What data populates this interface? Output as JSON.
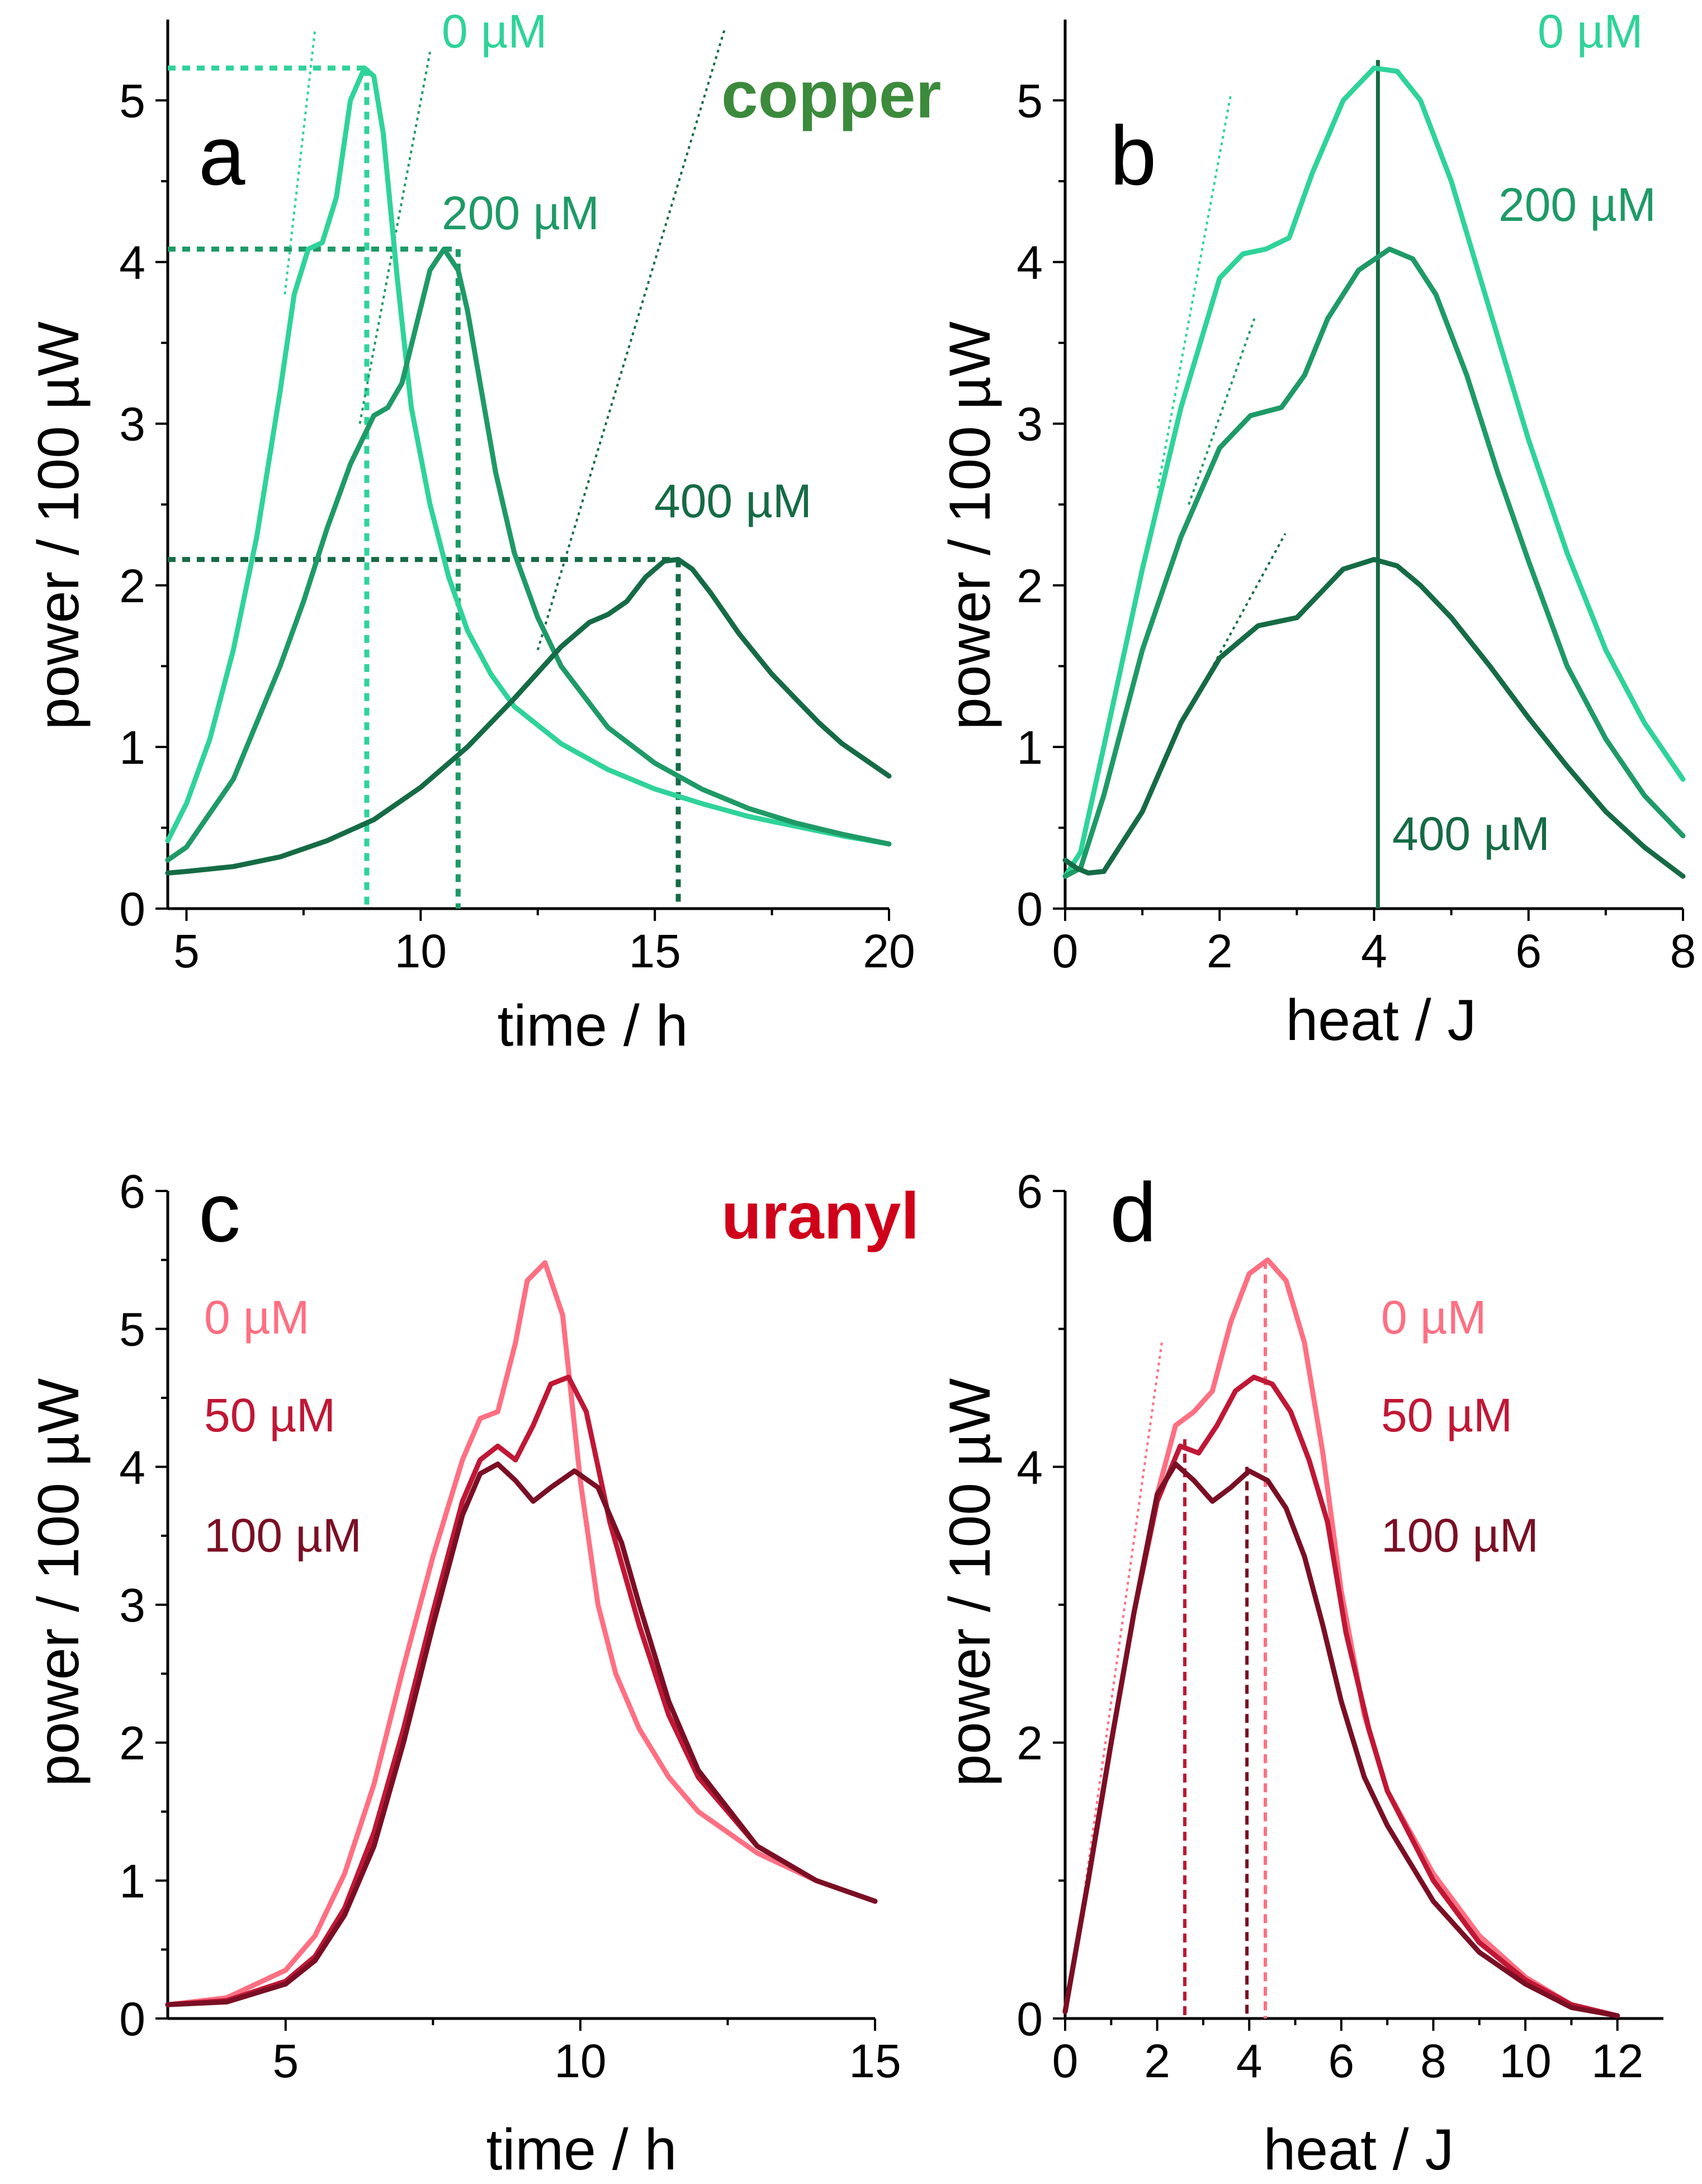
{
  "labels": {
    "copper": "copper",
    "uranyl": "uranyl"
  },
  "colors": {
    "cu_0": "#2fd39a",
    "cu_200": "#1e9a66",
    "cu_400": "#156b45",
    "cu_label": "#3c8a3c",
    "u_0": "#ff6f82",
    "u_50": "#c01735",
    "u_100": "#7a0f24",
    "u_label": "#d0001a"
  },
  "chart_data": [
    {
      "panel": "a",
      "type": "line",
      "xlabel": "time / h",
      "ylabel": "power / 100 µW",
      "xlim": [
        4.6,
        20
      ],
      "ylim": [
        0,
        5.5
      ],
      "xticks": [
        5,
        10,
        15,
        20
      ],
      "yticks": [
        0,
        1,
        2,
        3,
        4,
        5
      ],
      "series": [
        {
          "name": "0 µM",
          "color_key": "cu_0",
          "x": [
            4.6,
            5.0,
            5.5,
            6.0,
            6.5,
            7.0,
            7.3,
            7.6,
            7.9,
            8.2,
            8.5,
            8.8,
            9.0,
            9.2,
            9.5,
            9.8,
            10.2,
            10.6,
            11.0,
            11.5,
            12.0,
            13.0,
            14.0,
            15.0,
            16.0,
            17.0,
            18.0,
            19.0,
            20.0
          ],
          "y": [
            0.42,
            0.65,
            1.05,
            1.6,
            2.3,
            3.2,
            3.8,
            4.08,
            4.12,
            4.4,
            5.0,
            5.2,
            5.15,
            4.8,
            3.9,
            3.1,
            2.5,
            2.05,
            1.72,
            1.45,
            1.25,
            1.02,
            0.86,
            0.74,
            0.65,
            0.57,
            0.51,
            0.45,
            0.4
          ]
        },
        {
          "name": "200 µM",
          "color_key": "cu_200",
          "x": [
            4.6,
            5.0,
            6.0,
            7.0,
            7.5,
            8.0,
            8.5,
            9.0,
            9.3,
            9.6,
            9.9,
            10.2,
            10.5,
            10.8,
            11.0,
            11.3,
            11.6,
            12.0,
            12.5,
            13.0,
            14.0,
            15.0,
            16.0,
            17.0,
            18.0,
            19.0,
            20.0
          ],
          "y": [
            0.3,
            0.38,
            0.8,
            1.5,
            1.9,
            2.35,
            2.75,
            3.05,
            3.1,
            3.25,
            3.6,
            3.95,
            4.08,
            3.95,
            3.7,
            3.2,
            2.7,
            2.2,
            1.8,
            1.5,
            1.12,
            0.9,
            0.74,
            0.62,
            0.53,
            0.46,
            0.4
          ]
        },
        {
          "name": "400 µM",
          "color_key": "cu_400",
          "x": [
            4.6,
            5.0,
            6.0,
            7.0,
            8.0,
            9.0,
            10.0,
            11.0,
            12.0,
            13.0,
            13.6,
            14.0,
            14.4,
            14.8,
            15.2,
            15.5,
            15.8,
            16.2,
            16.8,
            17.5,
            18.0,
            18.5,
            19.0,
            19.5,
            20.0
          ],
          "y": [
            0.22,
            0.23,
            0.26,
            0.32,
            0.42,
            0.55,
            0.75,
            1.0,
            1.3,
            1.62,
            1.77,
            1.82,
            1.9,
            2.05,
            2.15,
            2.16,
            2.1,
            1.95,
            1.7,
            1.45,
            1.3,
            1.15,
            1.02,
            0.92,
            0.82
          ]
        }
      ],
      "legend": [
        "0 µM",
        "200 µM",
        "400 µM"
      ]
    },
    {
      "panel": "b",
      "type": "line",
      "xlabel": "heat / J",
      "ylabel": "power / 100 µW",
      "xlim": [
        0,
        8
      ],
      "ylim": [
        0,
        5.5
      ],
      "xticks": [
        0,
        2,
        4,
        6,
        8
      ],
      "yticks": [
        0,
        1,
        2,
        3,
        4,
        5
      ],
      "series": [
        {
          "name": "0 µM",
          "color_key": "cu_0",
          "x": [
            0,
            0.2,
            0.5,
            1.0,
            1.5,
            2.0,
            2.3,
            2.6,
            2.9,
            3.2,
            3.6,
            4.0,
            4.3,
            4.6,
            5.0,
            5.5,
            6.0,
            6.5,
            7.0,
            7.5,
            8.0
          ],
          "y": [
            0.2,
            0.35,
            1.0,
            2.1,
            3.1,
            3.9,
            4.05,
            4.08,
            4.15,
            4.55,
            5.0,
            5.2,
            5.18,
            5.0,
            4.5,
            3.7,
            2.9,
            2.2,
            1.6,
            1.15,
            0.8
          ]
        },
        {
          "name": "200 µM",
          "color_key": "cu_200",
          "x": [
            0,
            0.2,
            0.5,
            1.0,
            1.5,
            2.0,
            2.4,
            2.8,
            3.1,
            3.4,
            3.8,
            4.2,
            4.5,
            4.8,
            5.2,
            5.6,
            6.0,
            6.5,
            7.0,
            7.5,
            8.0
          ],
          "y": [
            0.2,
            0.25,
            0.7,
            1.6,
            2.3,
            2.85,
            3.05,
            3.1,
            3.3,
            3.65,
            3.95,
            4.08,
            4.02,
            3.8,
            3.3,
            2.7,
            2.15,
            1.5,
            1.05,
            0.7,
            0.45
          ]
        },
        {
          "name": "400 µM",
          "color_key": "cu_400",
          "x": [
            0,
            0.15,
            0.3,
            0.5,
            1.0,
            1.5,
            2.0,
            2.5,
            3.0,
            3.3,
            3.6,
            4.0,
            4.3,
            4.6,
            5.0,
            5.5,
            6.0,
            6.5,
            7.0,
            7.5,
            8.0
          ],
          "y": [
            0.3,
            0.25,
            0.22,
            0.23,
            0.6,
            1.15,
            1.55,
            1.75,
            1.8,
            1.95,
            2.1,
            2.16,
            2.12,
            2.0,
            1.8,
            1.5,
            1.18,
            0.88,
            0.6,
            0.38,
            0.2
          ]
        }
      ],
      "legend": [
        "0 µM",
        "200 µM",
        "400 µM"
      ]
    },
    {
      "panel": "c",
      "type": "line",
      "xlabel": "time / h",
      "ylabel": "power / 100 µW",
      "xlim": [
        3,
        15
      ],
      "ylim": [
        0,
        6
      ],
      "xticks": [
        5,
        10,
        15
      ],
      "yticks": [
        0,
        1,
        2,
        3,
        4,
        5,
        6
      ],
      "series": [
        {
          "name": "0 µM",
          "color_key": "u_0",
          "x": [
            3,
            4,
            5,
            5.5,
            6.0,
            6.5,
            7.0,
            7.5,
            8.0,
            8.3,
            8.6,
            8.9,
            9.1,
            9.4,
            9.7,
            10.0,
            10.3,
            10.6,
            11.0,
            11.5,
            12.0,
            13.0,
            14.0,
            15.0
          ],
          "y": [
            0.1,
            0.15,
            0.35,
            0.6,
            1.05,
            1.7,
            2.55,
            3.35,
            4.05,
            4.35,
            4.4,
            4.9,
            5.35,
            5.48,
            5.1,
            3.9,
            3.0,
            2.5,
            2.1,
            1.75,
            1.5,
            1.2,
            1.0,
            0.85
          ]
        },
        {
          "name": "50 µM",
          "color_key": "u_50",
          "x": [
            3,
            4,
            5,
            5.5,
            6.0,
            6.5,
            7.0,
            7.5,
            8.0,
            8.3,
            8.6,
            8.9,
            9.2,
            9.5,
            9.8,
            10.1,
            10.5,
            11.0,
            11.5,
            12.0,
            13.0,
            14.0,
            15.0
          ],
          "y": [
            0.1,
            0.13,
            0.27,
            0.45,
            0.8,
            1.35,
            2.1,
            2.95,
            3.75,
            4.05,
            4.15,
            4.05,
            4.3,
            4.6,
            4.65,
            4.4,
            3.6,
            2.85,
            2.2,
            1.75,
            1.25,
            1.0,
            0.85
          ]
        },
        {
          "name": "100 µM",
          "color_key": "u_100",
          "x": [
            3,
            4,
            5,
            5.5,
            6.0,
            6.5,
            7.0,
            7.5,
            8.0,
            8.3,
            8.6,
            8.9,
            9.2,
            9.5,
            9.9,
            10.3,
            10.7,
            11.0,
            11.5,
            12.0,
            13.0,
            14.0,
            15.0
          ],
          "y": [
            0.1,
            0.12,
            0.25,
            0.42,
            0.75,
            1.25,
            2.0,
            2.85,
            3.65,
            3.95,
            4.02,
            3.9,
            3.75,
            3.85,
            3.97,
            3.85,
            3.45,
            3.0,
            2.3,
            1.8,
            1.25,
            1.0,
            0.85
          ]
        }
      ],
      "legend": [
        "0 µM",
        "50 µM",
        "100 µM"
      ]
    },
    {
      "panel": "d",
      "type": "line",
      "xlabel": "heat / J",
      "ylabel": "power / 100 µW",
      "xlim": [
        0,
        13
      ],
      "ylim": [
        0,
        6
      ],
      "xticks": [
        0,
        2,
        4,
        6,
        8,
        10,
        12
      ],
      "yticks": [
        0,
        2,
        4,
        6
      ],
      "series": [
        {
          "name": "0 µM",
          "color_key": "u_0",
          "x": [
            0,
            0.5,
            1.0,
            1.5,
            2.0,
            2.4,
            2.8,
            3.2,
            3.6,
            4.0,
            4.4,
            4.8,
            5.2,
            5.6,
            6.0,
            6.5,
            7.0,
            8.0,
            9.0,
            10.0,
            11.0,
            12.0
          ],
          "y": [
            0.05,
            1.0,
            2.0,
            2.95,
            3.8,
            4.3,
            4.4,
            4.55,
            5.05,
            5.4,
            5.5,
            5.35,
            4.9,
            4.1,
            3.1,
            2.2,
            1.65,
            1.05,
            0.6,
            0.3,
            0.1,
            0.02
          ]
        },
        {
          "name": "50 µM",
          "color_key": "u_50",
          "x": [
            0,
            0.5,
            1.0,
            1.5,
            2.0,
            2.5,
            2.9,
            3.3,
            3.7,
            4.1,
            4.5,
            4.9,
            5.3,
            5.7,
            6.1,
            6.6,
            7.0,
            8.0,
            9.0,
            10.0,
            11.0,
            12.0
          ],
          "y": [
            0.05,
            1.0,
            2.0,
            2.95,
            3.75,
            4.15,
            4.1,
            4.3,
            4.55,
            4.65,
            4.6,
            4.4,
            4.05,
            3.6,
            2.8,
            2.1,
            1.65,
            1.0,
            0.55,
            0.28,
            0.1,
            0.02
          ]
        },
        {
          "name": "100 µM",
          "color_key": "u_100",
          "x": [
            0,
            0.5,
            1.0,
            1.5,
            2.0,
            2.4,
            2.8,
            3.2,
            3.6,
            4.0,
            4.4,
            4.8,
            5.2,
            5.6,
            6.0,
            6.5,
            7.0,
            8.0,
            9.0,
            10.0,
            11.0,
            12.0
          ],
          "y": [
            0.05,
            1.0,
            2.0,
            2.95,
            3.8,
            4.02,
            3.9,
            3.75,
            3.85,
            3.97,
            3.9,
            3.7,
            3.35,
            2.85,
            2.3,
            1.75,
            1.4,
            0.85,
            0.48,
            0.25,
            0.08,
            0.02
          ]
        }
      ],
      "legend": [
        "0 µM",
        "50 µM",
        "100 µM"
      ]
    }
  ]
}
